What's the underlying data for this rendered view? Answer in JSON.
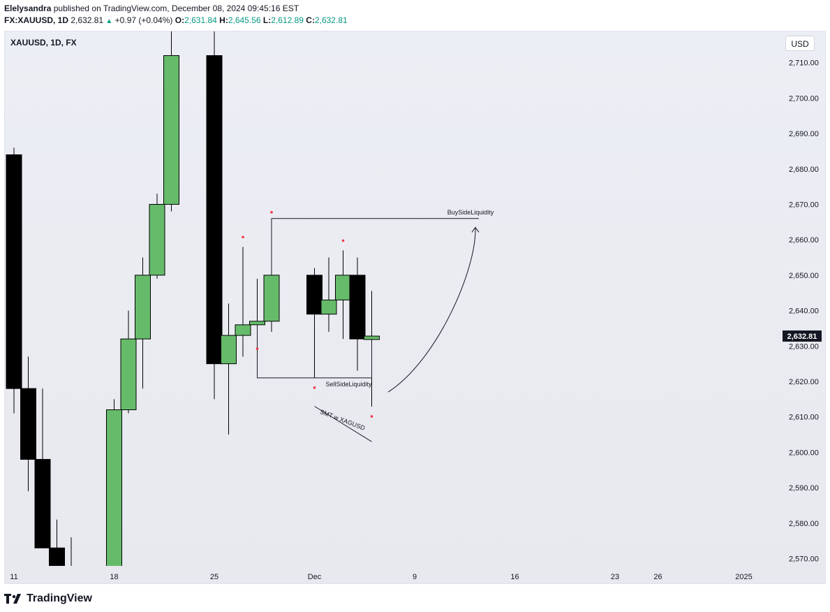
{
  "header": {
    "author": "Elelysandra",
    "published_text": "published on TradingView.com, December 08, 2024 09:45:16 EST",
    "symbol": "FX:XAUUSD, 1D",
    "last": "2,632.81",
    "change": "+0.97 (+0.04%)",
    "o_label": "O:",
    "o_val": "2,631.84",
    "h_label": "H:",
    "h_val": "2,645.56",
    "l_label": "L:",
    "l_val": "2,612.89",
    "c_label": "C:",
    "c_val": "2,632.81"
  },
  "chart": {
    "title": "XAUUSD, 1D, FX",
    "currency_button": "USD"
  },
  "footer": {
    "brand": "TradingView"
  },
  "chart_data": {
    "type": "candlestick",
    "symbol": "XAUUSD",
    "timeframe": "1D",
    "ylim": [
      2565,
      2718
    ],
    "y_ticks": [
      2570,
      2580,
      2590,
      2600,
      2610,
      2620,
      2630,
      2640,
      2650,
      2660,
      2670,
      2680,
      2690,
      2700,
      2710
    ],
    "x_tick_labels": [
      {
        "label": "11",
        "date": "2024-11-11"
      },
      {
        "label": "18",
        "date": "2024-11-18"
      },
      {
        "label": "25",
        "date": "2024-11-25"
      },
      {
        "label": "Dec",
        "date": "2024-12-02"
      },
      {
        "label": "9",
        "date": "2024-12-09"
      },
      {
        "label": "16",
        "date": "2024-12-16"
      },
      {
        "label": "23",
        "date": "2024-12-23"
      },
      {
        "label": "26",
        "date": "2024-12-26"
      },
      {
        "label": "2025",
        "date": "2025-01-01"
      }
    ],
    "colors": {
      "up": "#66bb6a",
      "down": "#000000",
      "wick": "#000000"
    },
    "last_price_label": "2,632.81",
    "candles": [
      {
        "date": "2024-11-11",
        "o": 2684,
        "h": 2686,
        "l": 2611,
        "c": 2618
      },
      {
        "date": "2024-11-12",
        "o": 2618,
        "h": 2627,
        "l": 2589,
        "c": 2598
      },
      {
        "date": "2024-11-13",
        "o": 2598,
        "h": 2618,
        "l": 2573,
        "c": 2573
      },
      {
        "date": "2024-11-14",
        "o": 2573,
        "h": 2581,
        "l": 2560,
        "c": 2566
      },
      {
        "date": "2024-11-15",
        "o": 2566,
        "h": 2576,
        "l": 2556,
        "c": 2562
      },
      {
        "date": "2024-11-18",
        "o": 2563,
        "h": 2615,
        "l": 2560,
        "c": 2612
      },
      {
        "date": "2024-11-19",
        "o": 2612,
        "h": 2640,
        "l": 2611,
        "c": 2632
      },
      {
        "date": "2024-11-20",
        "o": 2632,
        "h": 2655,
        "l": 2618,
        "c": 2650
      },
      {
        "date": "2024-11-21",
        "o": 2650,
        "h": 2673,
        "l": 2649,
        "c": 2670
      },
      {
        "date": "2024-11-22",
        "o": 2670,
        "h": 2722,
        "l": 2668,
        "c": 2712
      },
      {
        "date": "2024-11-25",
        "o": 2712,
        "h": 2721,
        "l": 2615,
        "c": 2625
      },
      {
        "date": "2024-11-26",
        "o": 2625,
        "h": 2642,
        "l": 2605,
        "c": 2633
      },
      {
        "date": "2024-11-27",
        "o": 2633,
        "h": 2658,
        "l": 2627,
        "c": 2636
      },
      {
        "date": "2024-11-28",
        "o": 2636,
        "h": 2649,
        "l": 2632,
        "c": 2637
      },
      {
        "date": "2024-11-29",
        "o": 2637,
        "h": 2665,
        "l": 2634,
        "c": 2650
      },
      {
        "date": "2024-12-02",
        "o": 2650,
        "h": 2652,
        "l": 2621,
        "c": 2639
      },
      {
        "date": "2024-12-03",
        "o": 2639,
        "h": 2655,
        "l": 2634,
        "c": 2643
      },
      {
        "date": "2024-12-04",
        "o": 2643,
        "h": 2657,
        "l": 2632,
        "c": 2650
      },
      {
        "date": "2024-12-05",
        "o": 2650,
        "h": 2655,
        "l": 2623,
        "c": 2632
      },
      {
        "date": "2024-12-06",
        "o": 2631.84,
        "h": 2645.56,
        "l": 2612.89,
        "c": 2632.81
      }
    ],
    "annotations": [
      {
        "kind": "text",
        "label": "BuySideLiquidity"
      },
      {
        "kind": "text",
        "label": "SellSideLiquidity"
      },
      {
        "kind": "text",
        "label": "SMT w XAGUSD"
      }
    ]
  }
}
